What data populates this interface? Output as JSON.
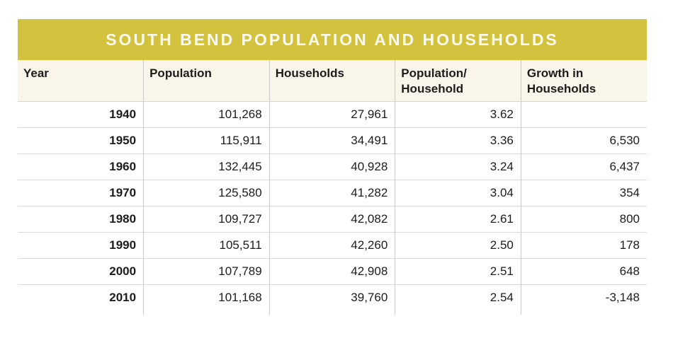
{
  "table": {
    "title": "SOUTH BEND POPULATION AND HOUSEHOLDS",
    "columns": [
      {
        "label": "Year"
      },
      {
        "label": "Population"
      },
      {
        "label": "Households"
      },
      {
        "label": "Population/\nHousehold"
      },
      {
        "label": "Growth in\nHouseholds"
      }
    ],
    "rows": [
      {
        "year": "1940",
        "population": "101,268",
        "households": "27,961",
        "pop_per_household": "3.62",
        "growth": ""
      },
      {
        "year": "1950",
        "population": "115,911",
        "households": "34,491",
        "pop_per_household": "3.36",
        "growth": "6,530"
      },
      {
        "year": "1960",
        "population": "132,445",
        "households": "40,928",
        "pop_per_household": "3.24",
        "growth": "6,437"
      },
      {
        "year": "1970",
        "population": "125,580",
        "households": "41,282",
        "pop_per_household": "3.04",
        "growth": "354"
      },
      {
        "year": "1980",
        "population": "109,727",
        "households": "42,082",
        "pop_per_household": "2.61",
        "growth": "800"
      },
      {
        "year": "1990",
        "population": "105,511",
        "households": "42,260",
        "pop_per_household": "2.50",
        "growth": "178"
      },
      {
        "year": "2000",
        "population": "107,789",
        "households": "42,908",
        "pop_per_household": "2.51",
        "growth": "648"
      },
      {
        "year": "2010",
        "population": "101,168",
        "households": "39,760",
        "pop_per_household": "2.54",
        "growth": "-3,148"
      }
    ]
  },
  "chart_data": {
    "type": "table",
    "title": "SOUTH BEND POPULATION AND HOUSEHOLDS",
    "columns": [
      "Year",
      "Population",
      "Households",
      "Population/Household",
      "Growth in Households"
    ],
    "rows": [
      [
        1940,
        101268,
        27961,
        3.62,
        null
      ],
      [
        1950,
        115911,
        34491,
        3.36,
        6530
      ],
      [
        1960,
        132445,
        40928,
        3.24,
        6437
      ],
      [
        1970,
        125580,
        41282,
        3.04,
        354
      ],
      [
        1980,
        109727,
        42082,
        2.61,
        800
      ],
      [
        1990,
        105511,
        42260,
        2.5,
        178
      ],
      [
        2000,
        107789,
        42908,
        2.51,
        648
      ],
      [
        2010,
        101168,
        39760,
        2.54,
        -3148
      ]
    ]
  },
  "colors": {
    "accent": "#d2c23e",
    "header-bg": "#f9f5e9",
    "title-text": "#fcf9ee",
    "row-line": "#dadada",
    "col-line": "#c9c9c9",
    "text": "#1c1c1c"
  }
}
